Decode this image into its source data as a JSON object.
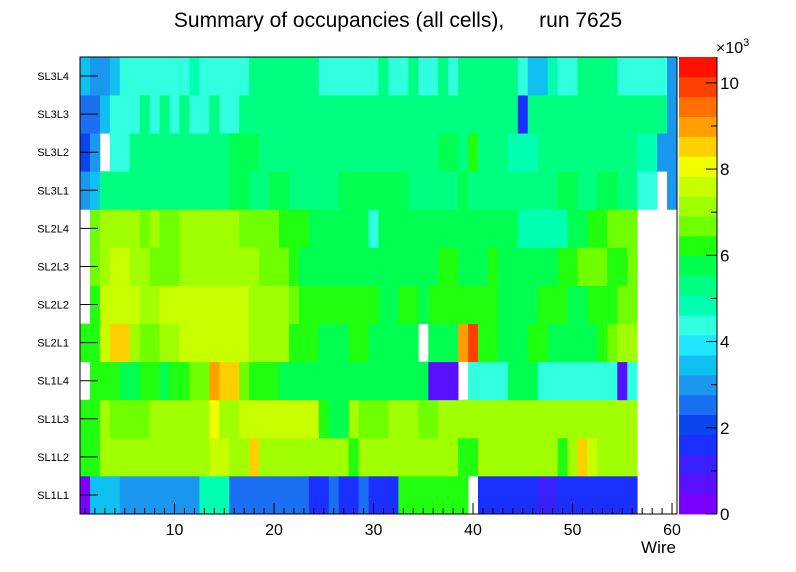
{
  "chart_data": {
    "type": "heatmap",
    "title": "Summary of occupancies (all cells),      run 7625",
    "xlabel": "Wire",
    "ylabel": "",
    "xlim": [
      0.5,
      60.5
    ],
    "x_ticks": [
      10,
      20,
      30,
      40,
      50,
      60
    ],
    "y_categories": [
      "SL1L1",
      "SL1L2",
      "SL1L3",
      "SL1L4",
      "SL2L1",
      "SL2L2",
      "SL2L3",
      "SL2L4",
      "SL3L1",
      "SL3L2",
      "SL3L3",
      "SL3L4"
    ],
    "z_range": [
      0,
      10600
    ],
    "z_ticks": [
      0,
      2,
      4,
      6,
      8,
      10
    ],
    "z_multiplier": "×10",
    "z_exponent": "3",
    "palette": [
      "#7a00ff",
      "#5a10ff",
      "#3a20ff",
      "#1a30ff",
      "#0a45f0",
      "#1a70f0",
      "#1a98f0",
      "#10c0f0",
      "#20e6ff",
      "#30ffe0",
      "#00ffb0",
      "#00ff80",
      "#00ff50",
      "#20ff10",
      "#70ff00",
      "#a0ff00",
      "#c8ff00",
      "#f0ff00",
      "#ffd000",
      "#ffa000",
      "#ff7000",
      "#ff4000",
      "#ff1000"
    ],
    "rows": [
      {
        "layer": "SL1L1",
        "segments": [
          [
            1,
            1,
            0
          ],
          [
            2,
            4,
            3.6
          ],
          [
            5,
            12,
            3.1
          ],
          [
            13,
            14,
            4.8
          ],
          [
            15,
            15,
            4.7
          ],
          [
            16,
            23,
            2.6
          ],
          [
            24,
            25,
            1.8
          ],
          [
            26,
            26,
            2.5
          ],
          [
            27,
            28,
            1.8
          ],
          [
            29,
            29,
            2.5
          ],
          [
            30,
            32,
            1.8
          ],
          [
            33,
            39,
            6.1
          ],
          [
            40,
            40,
            null
          ],
          [
            41,
            46,
            1.8
          ],
          [
            47,
            48,
            1.3
          ],
          [
            49,
            56,
            1.8
          ],
          [
            57,
            60,
            null
          ]
        ]
      },
      {
        "layer": "SL1L2",
        "segments": [
          [
            1,
            2,
            6.1
          ],
          [
            3,
            13,
            7.0
          ],
          [
            14,
            15,
            7.5
          ],
          [
            16,
            17,
            7.0
          ],
          [
            18,
            18,
            8.3
          ],
          [
            19,
            27,
            7.0
          ],
          [
            28,
            28,
            6.1
          ],
          [
            29,
            38,
            7.0
          ],
          [
            39,
            40,
            6.1
          ],
          [
            41,
            48,
            7.0
          ],
          [
            49,
            49,
            6.3
          ],
          [
            50,
            50,
            7.2
          ],
          [
            51,
            51,
            8.3
          ],
          [
            52,
            52,
            7.5
          ],
          [
            53,
            56,
            7.0
          ],
          [
            57,
            60,
            null
          ]
        ]
      },
      {
        "layer": "SL1L3",
        "segments": [
          [
            1,
            2,
            6.1
          ],
          [
            3,
            3,
            7.0
          ],
          [
            4,
            7,
            6.5
          ],
          [
            8,
            12,
            7.0
          ],
          [
            13,
            13,
            7.0
          ],
          [
            14,
            14,
            8.0
          ],
          [
            15,
            16,
            7.0
          ],
          [
            17,
            24,
            7.4
          ],
          [
            25,
            25,
            6.1
          ],
          [
            26,
            27,
            5.6
          ],
          [
            28,
            28,
            7.0
          ],
          [
            29,
            31,
            6.5
          ],
          [
            32,
            34,
            7.0
          ],
          [
            35,
            36,
            6.5
          ],
          [
            37,
            56,
            7.0
          ],
          [
            57,
            60,
            null
          ]
        ]
      },
      {
        "layer": "SL1L4",
        "segments": [
          [
            1,
            1,
            null
          ],
          [
            2,
            2,
            6.2
          ],
          [
            3,
            4,
            6.1
          ],
          [
            5,
            6,
            5.6
          ],
          [
            7,
            8,
            6.1
          ],
          [
            9,
            9,
            5.6
          ],
          [
            10,
            11,
            6.1
          ],
          [
            12,
            13,
            6.5
          ],
          [
            14,
            14,
            9.2
          ],
          [
            15,
            16,
            8.6
          ],
          [
            17,
            17,
            6.5
          ],
          [
            18,
            20,
            6.1
          ],
          [
            21,
            35,
            5.6
          ],
          [
            36,
            38,
            0.5
          ],
          [
            39,
            39,
            null
          ],
          [
            40,
            43,
            4.4
          ],
          [
            44,
            46,
            5.6
          ],
          [
            47,
            52,
            4.2
          ],
          [
            53,
            54,
            4.4
          ],
          [
            55,
            55,
            0.5
          ],
          [
            56,
            56,
            4.4
          ],
          [
            57,
            60,
            null
          ]
        ]
      },
      {
        "layer": "SL2L1",
        "segments": [
          [
            1,
            2,
            6.1
          ],
          [
            3,
            3,
            7.5
          ],
          [
            4,
            5,
            8.3
          ],
          [
            6,
            6,
            7.1
          ],
          [
            7,
            8,
            6.5
          ],
          [
            9,
            10,
            7.1
          ],
          [
            11,
            17,
            7.5
          ],
          [
            18,
            21,
            7.0
          ],
          [
            22,
            24,
            6.1
          ],
          [
            25,
            27,
            5.6
          ],
          [
            28,
            29,
            6.1
          ],
          [
            30,
            33,
            5.6
          ],
          [
            34,
            34,
            5.6
          ],
          [
            35,
            35,
            null
          ],
          [
            36,
            38,
            5.6
          ],
          [
            39,
            39,
            9.0
          ],
          [
            40,
            40,
            10.0
          ],
          [
            41,
            42,
            6.3
          ],
          [
            43,
            45,
            5.6
          ],
          [
            46,
            47,
            6.1
          ],
          [
            48,
            52,
            5.6
          ],
          [
            53,
            53,
            6.1
          ],
          [
            54,
            54,
            6.5
          ],
          [
            55,
            56,
            7.0
          ],
          [
            57,
            60,
            null
          ]
        ]
      },
      {
        "layer": "SL2L2",
        "segments": [
          [
            1,
            1,
            null
          ],
          [
            2,
            2,
            6.1
          ],
          [
            3,
            6,
            7.5
          ],
          [
            7,
            8,
            7.0
          ],
          [
            9,
            10,
            7.5
          ],
          [
            11,
            17,
            7.7
          ],
          [
            18,
            21,
            7.0
          ],
          [
            22,
            22,
            6.5
          ],
          [
            23,
            30,
            6.1
          ],
          [
            31,
            32,
            5.6
          ],
          [
            33,
            34,
            6.1
          ],
          [
            35,
            35,
            5.6
          ],
          [
            36,
            42,
            6.1
          ],
          [
            43,
            46,
            5.6
          ],
          [
            47,
            49,
            6.1
          ],
          [
            50,
            51,
            5.6
          ],
          [
            52,
            54,
            6.1
          ],
          [
            55,
            56,
            6.5
          ],
          [
            57,
            60,
            null
          ]
        ]
      },
      {
        "layer": "SL2L3",
        "segments": [
          [
            1,
            1,
            null
          ],
          [
            2,
            2,
            6.5
          ],
          [
            3,
            3,
            7.0
          ],
          [
            4,
            5,
            7.6
          ],
          [
            6,
            7,
            7.0
          ],
          [
            8,
            10,
            6.5
          ],
          [
            11,
            18,
            7.0
          ],
          [
            19,
            21,
            6.5
          ],
          [
            22,
            22,
            6.1
          ],
          [
            23,
            36,
            5.6
          ],
          [
            37,
            38,
            6.1
          ],
          [
            39,
            41,
            5.6
          ],
          [
            42,
            42,
            6.1
          ],
          [
            43,
            45,
            5.6
          ],
          [
            46,
            48,
            5.6
          ],
          [
            49,
            50,
            6.1
          ],
          [
            51,
            53,
            6.5
          ],
          [
            54,
            55,
            6.1
          ],
          [
            56,
            56,
            6.5
          ],
          [
            57,
            60,
            null
          ]
        ]
      },
      {
        "layer": "SL2L4",
        "segments": [
          [
            1,
            1,
            null
          ],
          [
            2,
            2,
            6.5
          ],
          [
            3,
            6,
            7.0
          ],
          [
            7,
            7,
            6.5
          ],
          [
            8,
            8,
            7.0
          ],
          [
            9,
            10,
            6.5
          ],
          [
            11,
            16,
            7.0
          ],
          [
            17,
            20,
            6.5
          ],
          [
            21,
            23,
            6.1
          ],
          [
            24,
            29,
            5.6
          ],
          [
            30,
            30,
            4.4
          ],
          [
            31,
            44,
            5.6
          ],
          [
            45,
            49,
            5.0
          ],
          [
            50,
            51,
            5.6
          ],
          [
            52,
            53,
            6.1
          ],
          [
            54,
            56,
            6.5
          ],
          [
            57,
            60,
            null
          ]
        ]
      },
      {
        "layer": "SL3L1",
        "segments": [
          [
            1,
            1,
            3.0
          ],
          [
            2,
            2,
            3.6
          ],
          [
            3,
            10,
            5.4
          ],
          [
            11,
            15,
            5.4
          ],
          [
            16,
            17,
            5.6
          ],
          [
            18,
            19,
            5.4
          ],
          [
            20,
            21,
            5.6
          ],
          [
            22,
            23,
            5.4
          ],
          [
            24,
            26,
            5.4
          ],
          [
            27,
            33,
            5.6
          ],
          [
            34,
            38,
            5.4
          ],
          [
            39,
            39,
            5.6
          ],
          [
            40,
            43,
            5.4
          ],
          [
            44,
            44,
            5.1
          ],
          [
            45,
            48,
            5.4
          ],
          [
            49,
            50,
            5.6
          ],
          [
            51,
            52,
            5.4
          ],
          [
            53,
            54,
            5.6
          ],
          [
            55,
            56,
            5.4
          ],
          [
            57,
            58,
            4.6
          ],
          [
            59,
            59,
            null
          ],
          [
            60,
            60,
            3.2
          ],
          [
            61,
            61,
            3.0
          ]
        ]
      },
      {
        "layer": "SL3L2",
        "segments": [
          [
            1,
            1,
            2.0
          ],
          [
            2,
            2,
            2.8
          ],
          [
            3,
            3,
            null
          ],
          [
            4,
            4,
            4.6
          ],
          [
            5,
            5,
            4.4
          ],
          [
            6,
            15,
            5.4
          ],
          [
            16,
            18,
            5.6
          ],
          [
            19,
            36,
            5.4
          ],
          [
            37,
            38,
            5.6
          ],
          [
            39,
            39,
            5.1
          ],
          [
            40,
            40,
            6.0
          ],
          [
            41,
            43,
            5.4
          ],
          [
            44,
            46,
            5.0
          ],
          [
            47,
            56,
            5.4
          ],
          [
            57,
            58,
            5.0
          ],
          [
            59,
            59,
            3.2
          ],
          [
            60,
            61,
            3.0
          ]
        ]
      },
      {
        "layer": "SL3L3",
        "segments": [
          [
            1,
            2,
            2.6
          ],
          [
            3,
            3,
            3.4
          ],
          [
            4,
            6,
            4.4
          ],
          [
            7,
            7,
            5.1
          ],
          [
            8,
            8,
            4.6
          ],
          [
            9,
            9,
            5.1
          ],
          [
            10,
            10,
            4.6
          ],
          [
            11,
            11,
            5.1
          ],
          [
            12,
            13,
            4.6
          ],
          [
            14,
            14,
            5.1
          ],
          [
            15,
            16,
            4.6
          ],
          [
            17,
            18,
            5.1
          ],
          [
            19,
            44,
            5.4
          ],
          [
            45,
            45,
            1.5
          ],
          [
            46,
            56,
            5.4
          ],
          [
            57,
            59,
            5.1
          ],
          [
            60,
            61,
            3.2
          ]
        ]
      },
      {
        "layer": "SL3L4",
        "segments": [
          [
            1,
            1,
            3.6
          ],
          [
            2,
            3,
            2.8
          ],
          [
            4,
            4,
            3.6
          ],
          [
            5,
            11,
            4.6
          ],
          [
            12,
            12,
            5.0
          ],
          [
            13,
            17,
            4.6
          ],
          [
            18,
            24,
            5.4
          ],
          [
            25,
            30,
            4.6
          ],
          [
            31,
            31,
            5.4
          ],
          [
            32,
            33,
            4.6
          ],
          [
            34,
            34,
            5.4
          ],
          [
            35,
            36,
            4.6
          ],
          [
            37,
            37,
            5.4
          ],
          [
            38,
            38,
            4.6
          ],
          [
            39,
            39,
            5.4
          ],
          [
            40,
            44,
            5.4
          ],
          [
            45,
            45,
            4.6
          ],
          [
            46,
            47,
            3.6
          ],
          [
            48,
            48,
            5.0
          ],
          [
            49,
            50,
            4.6
          ],
          [
            51,
            54,
            5.1
          ],
          [
            55,
            59,
            4.6
          ],
          [
            60,
            61,
            3.2
          ]
        ]
      }
    ]
  }
}
